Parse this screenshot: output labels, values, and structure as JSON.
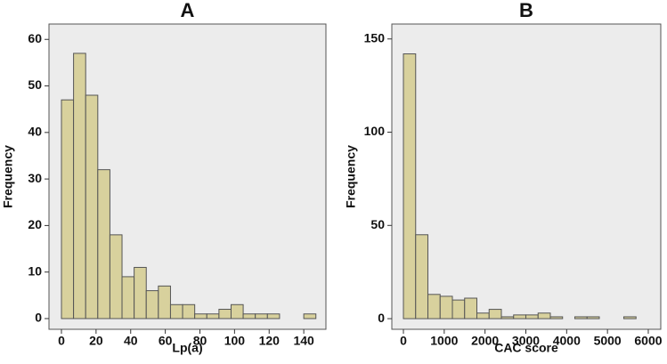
{
  "chart_data": [
    {
      "type": "histogram",
      "title": "A",
      "xlabel": "Lp(a)",
      "ylabel": "Frequency",
      "bins": [
        0,
        7,
        14,
        21,
        28,
        35,
        42,
        49,
        56,
        63,
        70,
        77,
        84,
        91,
        98,
        105,
        112,
        119,
        126,
        133,
        140,
        147
      ],
      "values": [
        47,
        57,
        48,
        32,
        18,
        9,
        11,
        6,
        7,
        3,
        3,
        1,
        1,
        2,
        3,
        1,
        1,
        1,
        0,
        0,
        1
      ],
      "color": "#d8d19d",
      "xlim": [
        -7.2,
        152.8
      ],
      "ylim": [
        -2.3,
        63.3
      ],
      "xticks": [
        0,
        20,
        40,
        60,
        80,
        100,
        120,
        140
      ],
      "yticks": [
        0,
        10,
        20,
        30,
        40,
        50,
        60
      ]
    },
    {
      "type": "histogram",
      "title": "B",
      "xlabel": "CAC score",
      "ylabel": "Frequency",
      "bins": [
        0,
        300,
        600,
        900,
        1200,
        1500,
        1800,
        2100,
        2400,
        2700,
        3000,
        3300,
        3600,
        3900,
        4200,
        4500,
        4800,
        5100,
        5400,
        5700
      ],
      "values": [
        142,
        45,
        13,
        12,
        10,
        11,
        3,
        5,
        1,
        2,
        2,
        3,
        1,
        0,
        1,
        1,
        0,
        0,
        1
      ],
      "color": "#d8d19d",
      "xlim": [
        -284,
        6306
      ],
      "ylim": [
        -5.7,
        158
      ],
      "xticks": [
        0,
        1000,
        2000,
        3000,
        4000,
        5000,
        6000
      ],
      "yticks": [
        0,
        50,
        100,
        150
      ]
    }
  ]
}
